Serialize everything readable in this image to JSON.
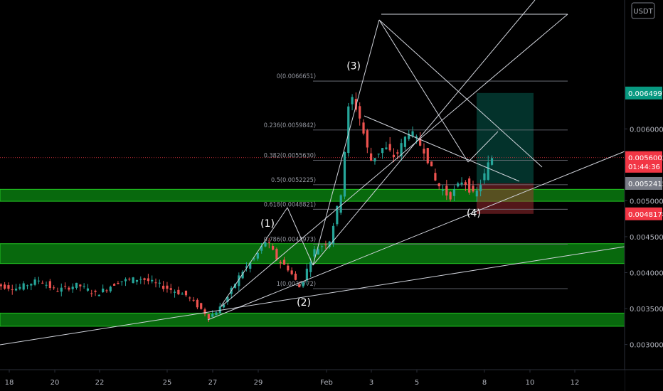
{
  "chart_data": {
    "type": "candlestick",
    "currency": "USDT",
    "y_ticks": [
      "0.0030000",
      "0.0035000",
      "0.0040000",
      "0.0045000",
      "0.0050000",
      "0.0060000"
    ],
    "ylim": [
      0.0025,
      0.007
    ],
    "x_ticks": [
      "18",
      "20",
      "22",
      "25",
      "27",
      "29",
      "Feb",
      "3",
      "5",
      "8",
      "10",
      "12"
    ],
    "price_labels": [
      {
        "text": "0.0064991",
        "value": 0.0064991,
        "color": "#089981"
      },
      {
        "text": "0.0056002",
        "value": 0.0056002,
        "color": "#f23645"
      },
      {
        "text": "01:44:36",
        "value": 0.00548,
        "color": "#f23645"
      },
      {
        "text": "0.0052415",
        "value": 0.0052415,
        "color": "#787b86"
      },
      {
        "text": "0.0048178",
        "value": 0.0048178,
        "color": "#f23645"
      }
    ],
    "fib_levels": [
      {
        "label": "0(0.0066651)",
        "value": 0.0066651
      },
      {
        "label": "0.236(0.0059842)",
        "value": 0.0059842
      },
      {
        "label": "0.382(0.0055630)",
        "value": 0.005563
      },
      {
        "label": "0.5(0.0052225)",
        "value": 0.0052225
      },
      {
        "label": "0.618(0.0048821)",
        "value": 0.0048821
      },
      {
        "label": "0.786(0.0043973)",
        "value": 0.0043973
      },
      {
        "label": "1(0.0037772)",
        "value": 0.0037772
      }
    ],
    "wave_labels": [
      {
        "text": "(1)",
        "t": 29.4,
        "v": 0.00464
      },
      {
        "text": "(2)",
        "t": 31.0,
        "v": 0.00354
      },
      {
        "text": "(3)",
        "t": 33.2,
        "v": 0.00683
      },
      {
        "text": "(4)",
        "t": 38.5,
        "v": 0.00478
      }
    ],
    "zones": [
      {
        "low": 0.004993,
        "high": 0.005159
      },
      {
        "low": 0.004127,
        "high": 0.004403
      },
      {
        "low": 0.003254,
        "high": 0.003437
      }
    ],
    "current_price": 0.0056002
  }
}
